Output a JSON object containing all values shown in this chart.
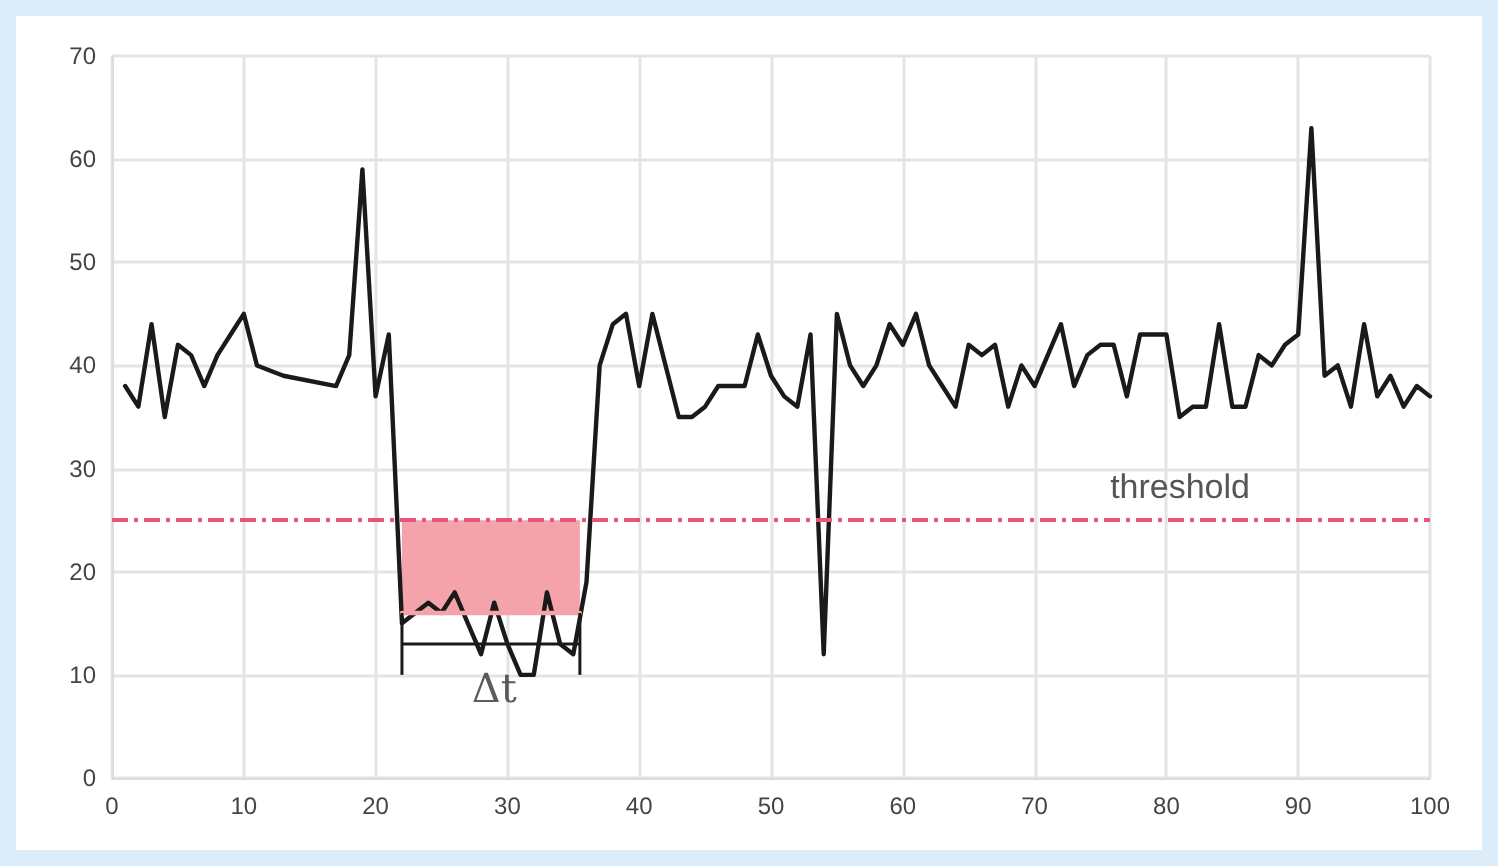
{
  "chart_data": {
    "type": "line",
    "x": [
      1,
      2,
      3,
      4,
      5,
      6,
      7,
      8,
      9,
      10,
      11,
      13,
      17,
      18,
      19,
      20,
      21,
      22,
      23,
      24,
      25,
      26,
      27,
      28,
      29,
      30,
      31,
      32,
      33,
      34,
      35,
      36,
      37,
      38,
      39,
      40,
      41,
      42,
      43,
      44,
      45,
      46,
      47,
      48,
      49,
      50,
      51,
      52,
      53,
      54,
      55,
      56,
      57,
      58,
      59,
      60,
      61,
      62,
      63,
      64,
      65,
      66,
      67,
      68,
      69,
      70,
      71,
      72,
      73,
      74,
      75,
      76,
      77,
      78,
      79,
      80,
      81,
      82,
      83,
      84,
      85,
      86,
      87,
      88,
      89,
      90,
      91,
      92,
      93,
      94,
      95,
      96,
      97,
      98,
      99,
      100
    ],
    "series": [
      {
        "color": "#1a1a1a",
        "values": [
          38,
          36,
          44,
          35,
          42,
          41,
          38,
          41,
          43,
          45,
          40,
          39,
          38,
          41,
          59,
          37,
          43,
          15,
          16,
          17,
          16,
          18,
          15,
          12,
          17,
          13,
          10,
          10,
          18,
          13,
          12,
          19,
          40,
          44,
          45,
          38,
          45,
          40,
          35,
          35,
          36,
          38,
          38,
          38,
          43,
          39,
          37,
          36,
          43,
          12,
          45,
          40,
          38,
          40,
          44,
          42,
          45,
          40,
          38,
          36,
          42,
          41,
          42,
          36,
          40,
          38,
          41,
          44,
          38,
          41,
          42,
          42,
          37,
          43,
          43,
          43,
          35,
          36,
          36,
          44,
          36,
          36,
          41,
          40,
          42,
          43,
          63,
          39,
          40,
          36,
          44,
          37,
          39,
          36,
          38,
          37
        ]
      },
      {
        "type": "line",
        "color": "#f4a3ab",
        "x": [
          22,
          35.5
        ],
        "values": [
          16,
          16
        ],
        "lower": [
          16,
          16
        ],
        "upper": [
          25,
          25
        ]
      }
    ],
    "xlim": [
      0,
      100
    ],
    "xticks": [
      0,
      10,
      20,
      30,
      40,
      50,
      60,
      70,
      80,
      90,
      100
    ],
    "ylim": [
      0,
      70
    ],
    "yticks": [
      0,
      10,
      20,
      30,
      40,
      50,
      60,
      70
    ],
    "grid": true,
    "marker": "none",
    "line_style": "solid",
    "ref_lines": [
      {
        "axis": "y",
        "value": 25,
        "label": "threshold",
        "color": "#e8547a",
        "line_style": "dashed"
      }
    ],
    "annotations": [
      {
        "text": "Δt",
        "x": 29,
        "y": 13
      }
    ]
  }
}
